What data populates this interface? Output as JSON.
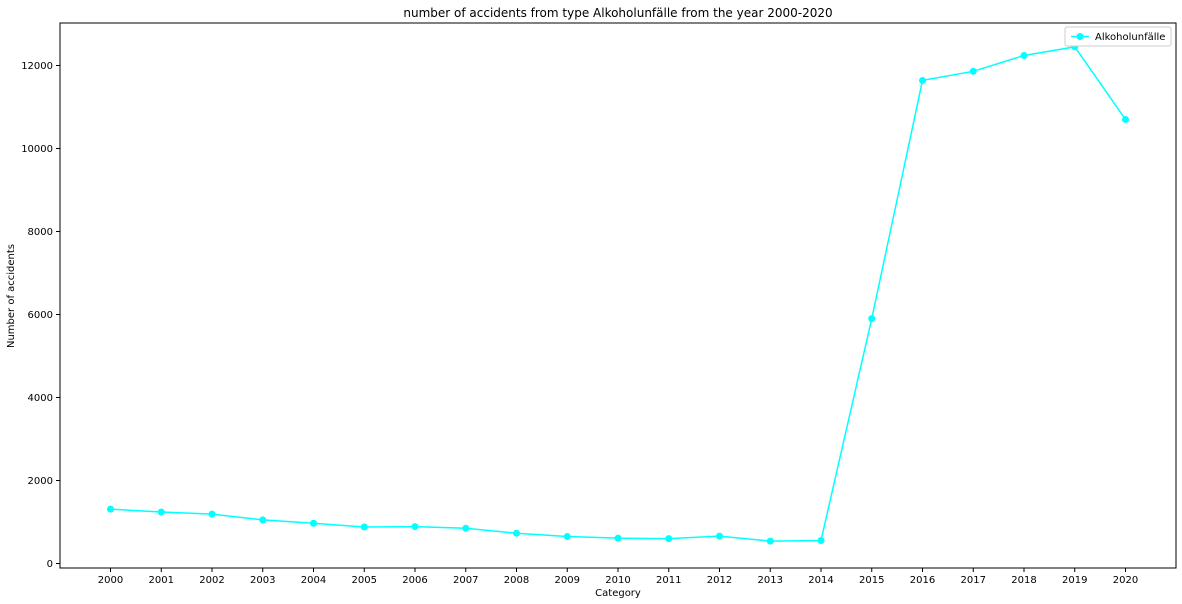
{
  "chart_data": {
    "type": "line",
    "title": "number of accidents from type Alkoholunfälle  from the year 2000-2020",
    "xlabel": "Category",
    "ylabel": "Number of accidents",
    "x": [
      "2000",
      "2001",
      "2002",
      "2003",
      "2004",
      "2005",
      "2006",
      "2007",
      "2008",
      "2009",
      "2010",
      "2011",
      "2012",
      "2013",
      "2014",
      "2015",
      "2016",
      "2017",
      "2018",
      "2019",
      "2020"
    ],
    "series": [
      {
        "name": "Alkoholunfälle",
        "color": "#00FFFF",
        "values": [
          1310,
          1240,
          1190,
          1050,
          970,
          880,
          890,
          850,
          730,
          650,
          610,
          600,
          660,
          540,
          555,
          5900,
          11640,
          11860,
          12240,
          12450,
          10700
        ]
      }
    ],
    "ylim": [
      0,
      13000
    ],
    "yticks": [
      0,
      2000,
      4000,
      6000,
      8000,
      10000,
      12000
    ],
    "grid": false,
    "legend_position": "top-right"
  }
}
